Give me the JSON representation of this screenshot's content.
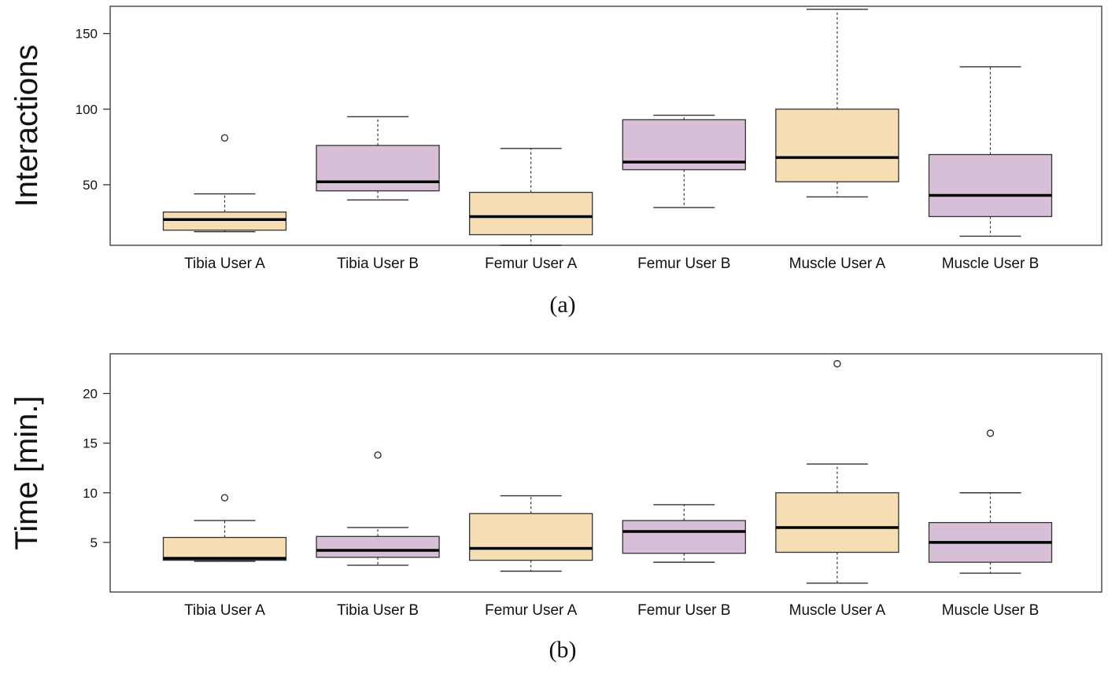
{
  "chart_data": [
    {
      "type": "box",
      "caption": "(a)",
      "ylabel": "Interactions",
      "xlabel": "",
      "ylim": [
        10,
        168
      ],
      "yticks": [
        50,
        100,
        150
      ],
      "grid": false,
      "categories": [
        "Tibia User A",
        "Tibia User B",
        "Femur User A",
        "Femur User B",
        "Muscle User A",
        "Muscle User B"
      ],
      "colors": [
        "#f5deb3",
        "#d8bfd8",
        "#f5deb3",
        "#d8bfd8",
        "#f5deb3",
        "#d8bfd8"
      ],
      "boxes": [
        {
          "min": 19,
          "q1": 20,
          "median": 27,
          "q3": 32,
          "max": 44,
          "outliers": [
            81
          ]
        },
        {
          "min": 40,
          "q1": 46,
          "median": 52,
          "q3": 76,
          "max": 95,
          "outliers": []
        },
        {
          "min": 10,
          "q1": 17,
          "median": 29,
          "q3": 45,
          "max": 74,
          "outliers": []
        },
        {
          "min": 35,
          "q1": 60,
          "median": 65,
          "q3": 93,
          "max": 96,
          "outliers": []
        },
        {
          "min": 42,
          "q1": 52,
          "median": 68,
          "q3": 100,
          "max": 166,
          "outliers": []
        },
        {
          "min": 16,
          "q1": 29,
          "median": 43,
          "q3": 70,
          "max": 128,
          "outliers": []
        }
      ]
    },
    {
      "type": "box",
      "caption": "(b)",
      "ylabel": "Time [min.]",
      "xlabel": "",
      "ylim": [
        0,
        24
      ],
      "yticks": [
        5,
        10,
        15,
        20
      ],
      "grid": false,
      "categories": [
        "Tibia User A",
        "Tibia User B",
        "Femur User A",
        "Femur User B",
        "Muscle User A",
        "Muscle User B"
      ],
      "colors": [
        "#f5deb3",
        "#d8bfd8",
        "#f5deb3",
        "#d8bfd8",
        "#f5deb3",
        "#d8bfd8"
      ],
      "boxes": [
        {
          "min": 3.1,
          "q1": 3.2,
          "median": 3.4,
          "q3": 5.5,
          "max": 7.2,
          "outliers": [
            9.5
          ]
        },
        {
          "min": 2.7,
          "q1": 3.5,
          "median": 4.2,
          "q3": 5.6,
          "max": 6.5,
          "outliers": [
            13.8
          ]
        },
        {
          "min": 2.1,
          "q1": 3.2,
          "median": 4.4,
          "q3": 7.9,
          "max": 9.7,
          "outliers": []
        },
        {
          "min": 3.0,
          "q1": 3.9,
          "median": 6.1,
          "q3": 7.2,
          "max": 8.8,
          "outliers": []
        },
        {
          "min": 0.9,
          "q1": 4.0,
          "median": 6.5,
          "q3": 10.0,
          "max": 12.9,
          "outliers": [
            23.0
          ]
        },
        {
          "min": 1.9,
          "q1": 3.0,
          "median": 5.0,
          "q3": 7.0,
          "max": 10.0,
          "outliers": [
            16.0
          ]
        }
      ]
    }
  ]
}
